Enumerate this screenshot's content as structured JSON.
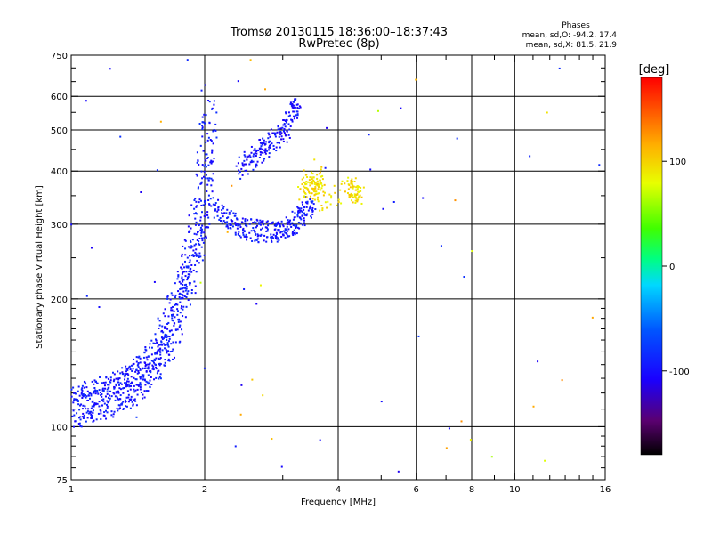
{
  "chart_data": {
    "type": "scatter",
    "title": "Tromsø 20130115 18:36:00–18:37:43",
    "subtitle": "RwPretec (8p)",
    "xlabel": "Frequency [MHz]",
    "ylabel": "Stationary phase Virtual Height [km]",
    "x_scale": "log",
    "y_scale": "log",
    "xlim": [
      1,
      16
    ],
    "ylim": [
      75,
      750
    ],
    "x_ticks": [
      1,
      2,
      4,
      6,
      8,
      10,
      16
    ],
    "x_tick_labels": [
      "1",
      "2",
      "4",
      "6",
      "8",
      "10",
      "16"
    ],
    "x_gridlines": [
      2,
      4,
      6,
      8,
      10
    ],
    "y_ticks": [
      75,
      100,
      200,
      300,
      400,
      500,
      600,
      750
    ],
    "y_tick_labels": [
      "75",
      "100",
      "200",
      "300",
      "400",
      "500",
      "600",
      "750"
    ],
    "y_gridlines": [
      100,
      200,
      300,
      400,
      500,
      600
    ],
    "grid": true,
    "stats": {
      "header": "Phases",
      "line_o": "mean, sd,O: -94.2, 17.4",
      "line_x": "mean, sd,X:  81.5, 21.9"
    },
    "colorbar": {
      "label": "[deg]",
      "range": [
        -180,
        180
      ],
      "ticks": [
        100,
        0,
        -100
      ],
      "tick_labels": [
        "100",
        "0",
        "-100"
      ],
      "colormap": "rainbow"
    },
    "series": [
      {
        "description_key": "e-f1-trace",
        "x": [
          1.0,
          1.05,
          1.1,
          1.15,
          1.2,
          1.25,
          1.3,
          1.35,
          1.4,
          1.45,
          1.5,
          1.55,
          1.6,
          1.65,
          1.7,
          1.75,
          1.8,
          1.85,
          1.9,
          1.95,
          2.0,
          2.02,
          2.05
        ],
        "y": [
          112,
          112,
          115,
          116,
          118,
          120,
          122,
          125,
          128,
          132,
          138,
          145,
          155,
          165,
          180,
          195,
          215,
          240,
          270,
          310,
          370,
          450,
          560
        ],
        "phase": -95
      },
      {
        "description_key": "f2-o-trace",
        "x": [
          2.1,
          2.2,
          2.3,
          2.4,
          2.5,
          2.6,
          2.7,
          2.8,
          2.9,
          3.0,
          3.1,
          3.2,
          3.3,
          3.4,
          3.5
        ],
        "y": [
          330,
          315,
          305,
          298,
          292,
          290,
          289,
          289,
          290,
          292,
          296,
          302,
          312,
          325,
          345
        ],
        "phase": -95
      },
      {
        "description_key": "f2-upper-traces",
        "x": [
          2.4,
          2.5,
          2.6,
          2.7,
          2.8,
          2.9,
          3.0,
          3.1,
          3.2,
          3.25
        ],
        "y": [
          400,
          420,
          440,
          450,
          470,
          480,
          490,
          520,
          560,
          600
        ],
        "phase": -100
      },
      {
        "description_key": "x-mode-cluster",
        "x": [
          3.3,
          3.4,
          3.5,
          3.55,
          3.6,
          3.7,
          4.2,
          4.3,
          4.4,
          4.5
        ],
        "y": [
          360,
          380,
          370,
          350,
          390,
          340,
          360,
          370,
          350,
          355
        ],
        "phase": 95
      }
    ]
  }
}
